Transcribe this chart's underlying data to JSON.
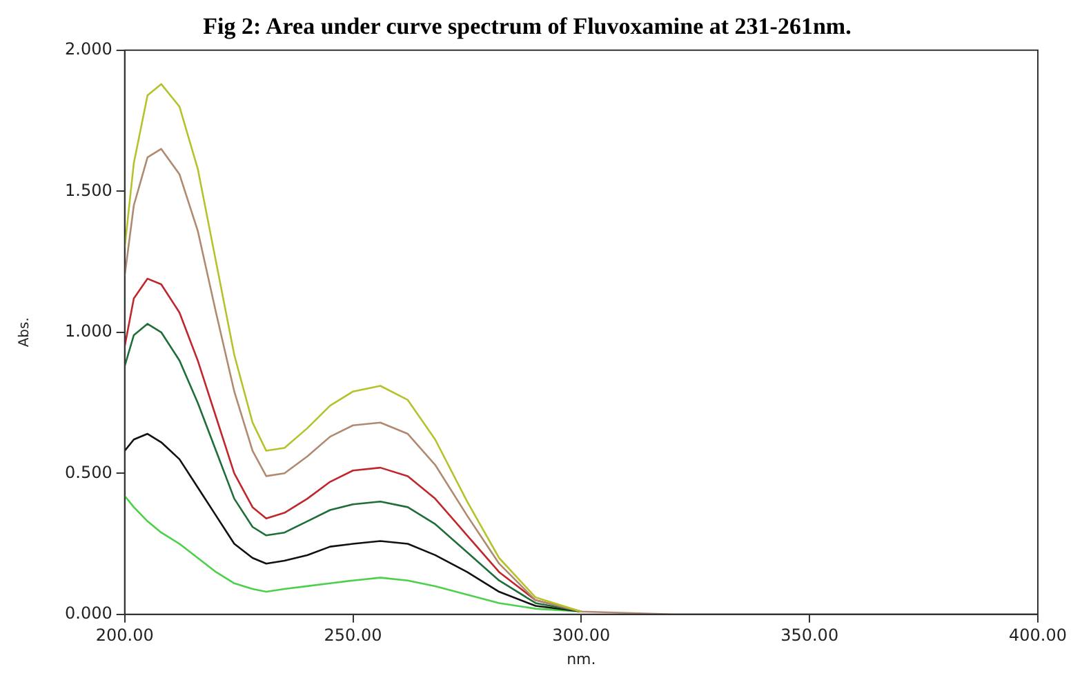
{
  "chart_data": {
    "type": "line",
    "title": "Fig 2: Area under curve spectrum of Fluvoxamine at 231-261nm.",
    "xlabel": "nm.",
    "ylabel": "Abs.",
    "x": [
      200,
      202,
      205,
      208,
      212,
      216,
      220,
      224,
      228,
      231,
      235,
      240,
      245,
      250,
      256,
      262,
      268,
      275,
      282,
      290,
      300,
      320,
      400
    ],
    "series": [
      {
        "color": "#b5c22a",
        "values": [
          1.3,
          1.6,
          1.84,
          1.88,
          1.8,
          1.58,
          1.25,
          0.92,
          0.68,
          0.58,
          0.59,
          0.66,
          0.74,
          0.79,
          0.81,
          0.76,
          0.62,
          0.4,
          0.2,
          0.06,
          0.01,
          null,
          null
        ]
      },
      {
        "color": "#b08a70",
        "values": [
          1.2,
          1.45,
          1.62,
          1.65,
          1.56,
          1.36,
          1.07,
          0.79,
          0.58,
          0.49,
          0.5,
          0.56,
          0.63,
          0.67,
          0.68,
          0.64,
          0.53,
          0.35,
          0.18,
          0.05,
          0.01,
          0.0,
          0.0
        ]
      },
      {
        "color": "#c0272d",
        "values": [
          0.95,
          1.12,
          1.19,
          1.17,
          1.07,
          0.9,
          0.7,
          0.5,
          0.38,
          0.34,
          0.36,
          0.41,
          0.47,
          0.51,
          0.52,
          0.49,
          0.41,
          0.28,
          0.15,
          0.05,
          0.01,
          null,
          null
        ]
      },
      {
        "color": "#1f6e3a",
        "values": [
          0.88,
          0.99,
          1.03,
          1.0,
          0.9,
          0.75,
          0.58,
          0.41,
          0.31,
          0.28,
          0.29,
          0.33,
          0.37,
          0.39,
          0.4,
          0.38,
          0.32,
          0.22,
          0.12,
          0.04,
          0.01,
          null,
          null
        ]
      },
      {
        "color": "#111111",
        "values": [
          0.58,
          0.62,
          0.64,
          0.61,
          0.55,
          0.45,
          0.35,
          0.25,
          0.2,
          0.18,
          0.19,
          0.21,
          0.24,
          0.25,
          0.26,
          0.25,
          0.21,
          0.15,
          0.08,
          0.03,
          0.01,
          null,
          null
        ]
      },
      {
        "color": "#4cd04c",
        "values": [
          0.42,
          0.38,
          0.33,
          0.29,
          0.25,
          0.2,
          0.15,
          0.11,
          0.09,
          0.08,
          0.09,
          0.1,
          0.11,
          0.12,
          0.13,
          0.12,
          0.1,
          0.07,
          0.04,
          0.02,
          0.01,
          null,
          null
        ]
      }
    ],
    "xlim": [
      200,
      400
    ],
    "ylim": [
      0,
      2
    ],
    "xticks": [
      {
        "value": 200,
        "label": "200.00"
      },
      {
        "value": 250,
        "label": "250.00"
      },
      {
        "value": 300,
        "label": "300.00"
      },
      {
        "value": 350,
        "label": "350.00"
      },
      {
        "value": 400,
        "label": "400.00"
      }
    ],
    "yticks": [
      {
        "value": 0,
        "label": "0.000"
      },
      {
        "value": 0.5,
        "label": "0.500"
      },
      {
        "value": 1,
        "label": "1.000"
      },
      {
        "value": 1.5,
        "label": "1.500"
      },
      {
        "value": 2,
        "label": "2.000"
      }
    ],
    "grid": false,
    "legend": false,
    "marker": "none",
    "line_style": "solid"
  }
}
